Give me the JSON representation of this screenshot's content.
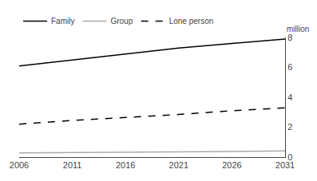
{
  "chart_data": {
    "type": "line",
    "x": [
      2006,
      2011,
      2016,
      2021,
      2026,
      2031
    ],
    "series": [
      {
        "name": "Family",
        "color": "#000000",
        "line_style": "solid",
        "values": [
          6.1,
          6.5,
          6.9,
          7.3,
          7.6,
          7.9
        ]
      },
      {
        "name": "Group",
        "color": "#aaaaaa",
        "line_style": "solid",
        "values": [
          0.28,
          0.3,
          0.32,
          0.34,
          0.38,
          0.42
        ]
      },
      {
        "name": "Lone person",
        "color": "#000000",
        "line_style": "dashed",
        "values": [
          2.2,
          2.45,
          2.65,
          2.85,
          3.1,
          3.3
        ]
      }
    ],
    "ylabel": "million",
    "xlim": [
      2006,
      2031
    ],
    "ylim": [
      0,
      8
    ],
    "xticks": [
      2006,
      2011,
      2016,
      2021,
      2026,
      2031
    ],
    "yticks": [
      0,
      2,
      4,
      6,
      8
    ],
    "grid": false,
    "legend": "top left"
  }
}
